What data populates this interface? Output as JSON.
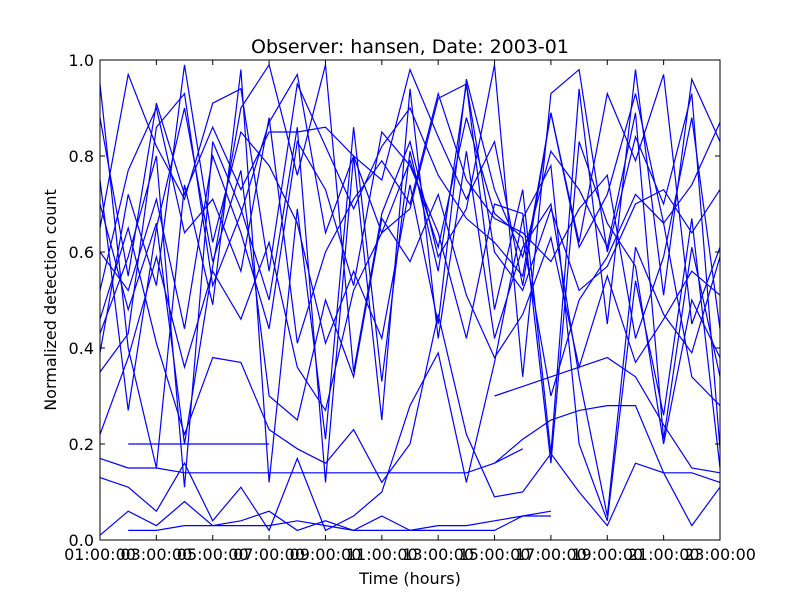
{
  "chart_data": {
    "type": "line",
    "title": "Observer: hansen, Date: 2003-01",
    "xlabel": "Time (hours)",
    "ylabel": "Normalized detection count",
    "xlim": [
      1,
      23
    ],
    "ylim": [
      0.0,
      1.0
    ],
    "x_ticks": [
      {
        "value": 1,
        "label": "01:00:00"
      },
      {
        "value": 3,
        "label": "03:00:00"
      },
      {
        "value": 5,
        "label": "05:00:00"
      },
      {
        "value": 7,
        "label": "07:00:00"
      },
      {
        "value": 9,
        "label": "09:00:00"
      },
      {
        "value": 11,
        "label": "11:00:00"
      },
      {
        "value": 13,
        "label": "13:00:00"
      },
      {
        "value": 15,
        "label": "15:00:00"
      },
      {
        "value": 17,
        "label": "17:00:00"
      },
      {
        "value": 19,
        "label": "19:00:00"
      },
      {
        "value": 21,
        "label": "21:00:00"
      },
      {
        "value": 23,
        "label": "23:00:00"
      }
    ],
    "y_ticks": [
      {
        "value": 0.0,
        "label": "0.0"
      },
      {
        "value": 0.2,
        "label": "0.2"
      },
      {
        "value": 0.4,
        "label": "0.4"
      },
      {
        "value": 0.6,
        "label": "0.6"
      },
      {
        "value": 0.8,
        "label": "0.8"
      },
      {
        "value": 1.0,
        "label": "1.0"
      }
    ],
    "grid": false,
    "color": "#0000ff",
    "series": [
      {
        "x": [
          2,
          3,
          4,
          5,
          6,
          7
        ],
        "y": [
          0.2,
          0.2,
          0.2,
          0.2,
          0.2,
          0.2
        ]
      },
      {
        "x": [
          1,
          2,
          3,
          4,
          5,
          6,
          7,
          8,
          9,
          10,
          11,
          12,
          13,
          14,
          15,
          16
        ],
        "y": [
          0.17,
          0.15,
          0.15,
          0.14,
          0.14,
          0.14,
          0.14,
          0.14,
          0.14,
          0.14,
          0.14,
          0.14,
          0.14,
          0.14,
          0.16,
          0.19
        ]
      },
      {
        "x": [
          2,
          3,
          4,
          5,
          6,
          7,
          8,
          9,
          10,
          11,
          12,
          13,
          14,
          15,
          16,
          17
        ],
        "y": [
          0.02,
          0.02,
          0.03,
          0.03,
          0.03,
          0.03,
          0.04,
          0.03,
          0.02,
          0.02,
          0.02,
          0.02,
          0.02,
          0.02,
          0.05,
          0.06
        ]
      },
      {
        "x": [
          1,
          2,
          3,
          4,
          5,
          6,
          7,
          8,
          9,
          10,
          11,
          12,
          13,
          14,
          15,
          16,
          17
        ],
        "y": [
          0.01,
          0.06,
          0.03,
          0.08,
          0.03,
          0.04,
          0.06,
          0.02,
          0.04,
          0.02,
          0.05,
          0.02,
          0.03,
          0.03,
          0.04,
          0.05,
          0.05
        ]
      },
      {
        "x": [
          15,
          16,
          17,
          18,
          19,
          20,
          21,
          22,
          23
        ],
        "y": [
          0.16,
          0.21,
          0.25,
          0.27,
          0.28,
          0.28,
          0.14,
          0.14,
          0.12
        ]
      },
      {
        "x": [
          15,
          16,
          17,
          18,
          19,
          20,
          21,
          22,
          23
        ],
        "y": [
          0.3,
          0.32,
          0.34,
          0.36,
          0.38,
          0.34,
          0.24,
          0.15,
          0.14
        ]
      },
      {
        "x": [
          1,
          2,
          3,
          4,
          5,
          6,
          7,
          8,
          9,
          10,
          11,
          12,
          13,
          14,
          15,
          16,
          17,
          18,
          19,
          20,
          21,
          22,
          23
        ],
        "y": [
          0.46,
          0.65,
          0.41,
          0.22,
          0.38,
          0.37,
          0.23,
          0.19,
          0.16,
          0.23,
          0.12,
          0.2,
          0.47,
          0.22,
          0.09,
          0.1,
          0.18,
          0.1,
          0.03,
          0.16,
          0.14,
          0.03,
          0.11
        ]
      },
      {
        "x": [
          1,
          2,
          3,
          4,
          5,
          6,
          7,
          8,
          9,
          10,
          11,
          12,
          13,
          14,
          15,
          16,
          17,
          18,
          19,
          20,
          21,
          22,
          23
        ],
        "y": [
          0.75,
          0.27,
          0.65,
          0.9,
          0.58,
          0.77,
          0.3,
          0.25,
          0.5,
          0.34,
          0.67,
          0.58,
          0.72,
          0.51,
          0.38,
          0.47,
          0.63,
          0.36,
          0.55,
          0.37,
          0.46,
          0.56,
          0.51
        ]
      },
      {
        "x": [
          1,
          2,
          3,
          4,
          5,
          6,
          7,
          8,
          9,
          10,
          11,
          12,
          13,
          14,
          15,
          16,
          17,
          18,
          19,
          20,
          21,
          22,
          23
        ],
        "y": [
          0.52,
          0.77,
          0.9,
          0.64,
          0.71,
          0.56,
          0.88,
          0.41,
          0.6,
          0.71,
          0.79,
          0.7,
          0.93,
          0.75,
          0.67,
          0.64,
          0.58,
          0.69,
          0.76,
          0.42,
          0.59,
          0.88,
          0.44
        ]
      },
      {
        "x": [
          1,
          2,
          3,
          4,
          5,
          6,
          7,
          8,
          9,
          10,
          11,
          12,
          13,
          14,
          15,
          16,
          17,
          18,
          19,
          20,
          21,
          22,
          23
        ],
        "y": [
          0.35,
          0.43,
          0.86,
          0.93,
          0.53,
          0.68,
          0.87,
          0.97,
          0.64,
          0.8,
          0.75,
          0.98,
          0.84,
          0.71,
          0.83,
          0.53,
          0.89,
          0.61,
          0.72,
          0.93,
          0.66,
          0.74,
          0.87
        ]
      },
      {
        "x": [
          1,
          2,
          3,
          4,
          5,
          6,
          7,
          8,
          9,
          10,
          11,
          12,
          13,
          14,
          15,
          16,
          17,
          18,
          19,
          20,
          21,
          22,
          23
        ],
        "y": [
          0.95,
          0.4,
          0.15,
          0.74,
          0.49,
          0.98,
          0.12,
          0.69,
          0.21,
          0.86,
          0.33,
          0.81,
          0.56,
          0.95,
          0.48,
          0.73,
          0.18,
          0.94,
          0.45,
          0.98,
          0.51,
          0.96,
          0.83
        ]
      },
      {
        "x": [
          1,
          2,
          3,
          4,
          5,
          6,
          7,
          8,
          9,
          10,
          11,
          12,
          13,
          14,
          15,
          16,
          17,
          18,
          19,
          20,
          21,
          22,
          23
        ],
        "y": [
          0.22,
          0.38,
          0.59,
          0.36,
          0.56,
          0.46,
          0.62,
          0.36,
          0.27,
          0.52,
          0.64,
          0.79,
          0.61,
          0.88,
          0.68,
          0.63,
          0.3,
          0.5,
          0.59,
          0.72,
          0.66,
          0.34,
          0.28
        ]
      },
      {
        "x": [
          1,
          2,
          3,
          4,
          5,
          6,
          7,
          8,
          9,
          10,
          11,
          12,
          13,
          14,
          15,
          16,
          17,
          18,
          19,
          20,
          21,
          22,
          23
        ],
        "y": [
          0.6,
          0.52,
          0.71,
          0.44,
          0.8,
          0.64,
          0.44,
          0.83,
          0.73,
          0.53,
          0.85,
          0.78,
          0.64,
          0.42,
          0.7,
          0.68,
          0.16,
          0.83,
          0.66,
          0.57,
          0.2,
          0.5,
          0.38
        ]
      },
      {
        "x": [
          1,
          2,
          3,
          4,
          5,
          6,
          7,
          8,
          9,
          10,
          11,
          12,
          13,
          14,
          15,
          16,
          17,
          18,
          19,
          20,
          21,
          22,
          23
        ],
        "y": [
          0.13,
          0.11,
          0.06,
          0.16,
          0.04,
          0.11,
          0.02,
          0.17,
          0.02,
          0.05,
          0.1,
          0.28,
          0.39,
          0.12,
          0.37,
          0.67,
          0.78,
          0.2,
          0.04,
          0.54,
          0.26,
          0.67,
          0.15
        ]
      },
      {
        "x": [
          1,
          2,
          3,
          4,
          5,
          6,
          7,
          8,
          9,
          10,
          11,
          12,
          13,
          14,
          15,
          16,
          17,
          18,
          19,
          20,
          21,
          22,
          23
        ],
        "y": [
          0.88,
          0.55,
          0.91,
          0.72,
          0.86,
          0.73,
          0.85,
          0.85,
          0.86,
          0.8,
          0.64,
          0.69,
          0.92,
          0.95,
          0.6,
          0.52,
          0.69,
          0.52,
          0.57,
          0.7,
          0.73,
          0.64,
          0.73
        ]
      },
      {
        "x": [
          1,
          2,
          3,
          4,
          5,
          6,
          7,
          8,
          9,
          10,
          11,
          12,
          13,
          14,
          15,
          16,
          17,
          18,
          19,
          20,
          21,
          22,
          23
        ],
        "y": [
          0.65,
          0.97,
          0.82,
          0.71,
          0.91,
          0.94,
          0.56,
          0.95,
          0.82,
          0.69,
          0.82,
          0.9,
          0.76,
          0.67,
          0.62,
          0.55,
          0.89,
          0.62,
          0.93,
          0.79,
          0.97,
          0.45,
          0.61
        ]
      },
      {
        "x": [
          1,
          2,
          3,
          4,
          5,
          6,
          7,
          8,
          9,
          10,
          11,
          12,
          13,
          14,
          15,
          16,
          17,
          18,
          19,
          20,
          21,
          22,
          23
        ],
        "y": [
          0.39,
          0.72,
          0.53,
          0.99,
          0.62,
          0.85,
          0.78,
          0.66,
          0.41,
          0.56,
          0.42,
          0.74,
          0.45,
          0.96,
          0.73,
          0.59,
          0.81,
          0.73,
          0.61,
          0.89,
          0.21,
          0.61,
          0.34
        ]
      },
      {
        "x": [
          1,
          2,
          3,
          4,
          5,
          6,
          7,
          8,
          9,
          10,
          11,
          12,
          13,
          14,
          15,
          16,
          17,
          18,
          19,
          20,
          21,
          22,
          23
        ],
        "y": [
          0.7,
          0.48,
          0.66,
          0.2,
          0.57,
          0.9,
          0.99,
          0.76,
          0.99,
          0.35,
          0.68,
          0.83,
          0.59,
          0.69,
          0.99,
          0.34,
          0.93,
          0.98,
          0.6,
          0.84,
          0.7,
          0.93,
          0.19
        ]
      },
      {
        "x": [
          1,
          2,
          3,
          4,
          5,
          6,
          7,
          8,
          9,
          10,
          11,
          12,
          13,
          14,
          15,
          16,
          17,
          18,
          19,
          20,
          21,
          22,
          23
        ],
        "y": [
          0.43,
          0.59,
          0.8,
          0.11,
          0.83,
          0.69,
          0.5,
          0.86,
          0.12,
          0.8,
          0.25,
          0.94,
          0.42,
          0.81,
          0.42,
          0.61,
          0.7,
          0.34,
          0.05,
          0.61,
          0.47,
          0.39,
          0.59
        ]
      }
    ]
  }
}
